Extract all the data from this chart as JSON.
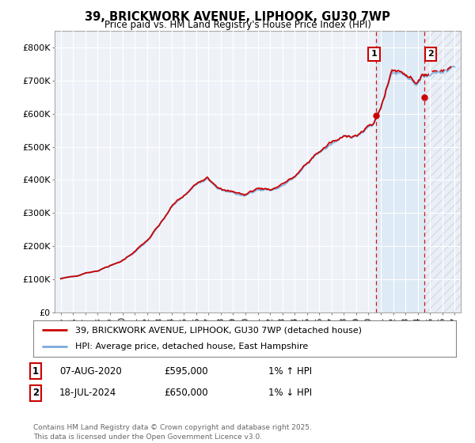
{
  "title": "39, BRICKWORK AVENUE, LIPHOOK, GU30 7WP",
  "subtitle": "Price paid vs. HM Land Registry's House Price Index (HPI)",
  "background_color": "#ffffff",
  "plot_bg_color": "#eef2f8",
  "grid_color": "#ffffff",
  "ylim": [
    0,
    850000
  ],
  "yticks": [
    0,
    100000,
    200000,
    300000,
    400000,
    500000,
    600000,
    700000,
    800000
  ],
  "ytick_labels": [
    "£0",
    "£100K",
    "£200K",
    "£300K",
    "£400K",
    "£500K",
    "£600K",
    "£700K",
    "£800K"
  ],
  "xlim_start": 1994.5,
  "xlim_end": 2027.5,
  "xtick_years": [
    1995,
    1996,
    1997,
    1998,
    1999,
    2000,
    2001,
    2002,
    2003,
    2004,
    2005,
    2006,
    2007,
    2008,
    2009,
    2010,
    2011,
    2012,
    2013,
    2014,
    2015,
    2016,
    2017,
    2018,
    2019,
    2020,
    2021,
    2022,
    2023,
    2024,
    2025,
    2026,
    2027
  ],
  "hpi_color": "#7aaadd",
  "price_color": "#cc0000",
  "dashed_color": "#cc0000",
  "sale1_x": 2020.595,
  "sale1_y": 595000,
  "sale2_x": 2024.54,
  "sale2_y": 650000,
  "shade_mid_color": "#dae8f5",
  "legend_label1": "39, BRICKWORK AVENUE, LIPHOOK, GU30 7WP (detached house)",
  "legend_label2": "HPI: Average price, detached house, East Hampshire",
  "note1_num": "1",
  "note1_date": "07-AUG-2020",
  "note1_price": "£595,000",
  "note1_hpi": "1% ↑ HPI",
  "note2_num": "2",
  "note2_date": "18-JUL-2024",
  "note2_price": "£650,000",
  "note2_hpi": "1% ↓ HPI",
  "footer": "Contains HM Land Registry data © Crown copyright and database right 2025.\nThis data is licensed under the Open Government Licence v3.0."
}
